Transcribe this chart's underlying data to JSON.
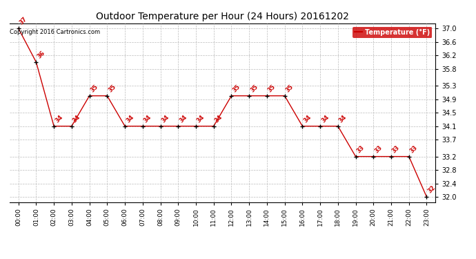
{
  "title": "Outdoor Temperature per Hour (24 Hours) 20161202",
  "hours": [
    "00:00",
    "01:00",
    "02:00",
    "03:00",
    "04:00",
    "05:00",
    "06:00",
    "07:00",
    "08:00",
    "09:00",
    "10:00",
    "11:00",
    "12:00",
    "13:00",
    "14:00",
    "15:00",
    "16:00",
    "17:00",
    "18:00",
    "19:00",
    "20:00",
    "21:00",
    "22:00",
    "23:00"
  ],
  "temps": [
    37.0,
    36.0,
    34.1,
    34.1,
    35.0,
    35.0,
    34.1,
    34.1,
    34.1,
    34.1,
    34.1,
    34.1,
    35.0,
    35.0,
    35.0,
    35.0,
    34.1,
    34.1,
    34.1,
    33.2,
    33.2,
    33.2,
    33.2,
    32.0
  ],
  "temp_labels": [
    "37",
    "36",
    "34",
    "34",
    "35",
    "35",
    "34",
    "34",
    "34",
    "34",
    "34",
    "34",
    "35",
    "35",
    "35",
    "35",
    "34",
    "34",
    "34",
    "33",
    "33",
    "33",
    "33",
    "32"
  ],
  "ylim_min": 31.85,
  "ylim_max": 37.15,
  "yticks": [
    32.0,
    32.4,
    32.8,
    33.2,
    33.7,
    34.1,
    34.5,
    34.9,
    35.3,
    35.8,
    36.2,
    36.6,
    37.0
  ],
  "line_color": "#cc0000",
  "marker_color": "#000000",
  "bg_color": "#ffffff",
  "grid_color": "#bbbbbb",
  "copyright_text": "Copyright 2016 Cartronics.com",
  "legend_label": "Temperature (°F)",
  "legend_bg": "#cc0000",
  "legend_fg": "#ffffff"
}
